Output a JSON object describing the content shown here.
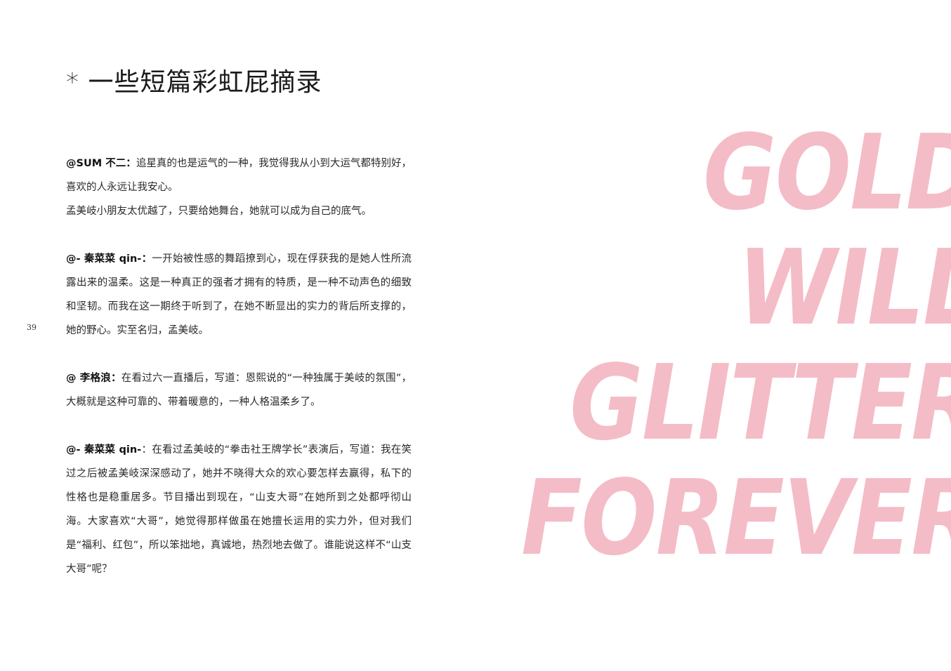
{
  "title": "* 一些短篇彩虹屁摘录",
  "page_number": "39",
  "quotes": [
    {
      "author": "@SUM 不二：",
      "paragraphs": [
        "追星真的也是运气的一种，我觉得我从小到大运气都特别好，喜欢的人永远让我安心。",
        "孟美岐小朋友太优越了，只要给她舞台，她就可以成为自己的底气。"
      ]
    },
    {
      "author": "@- 秦菜菜 qin-：",
      "paragraphs": [
        "一开始被性感的舞蹈撩到心，现在俘获我的是她人性所流露出来的温柔。这是一种真正的强者才拥有的特质，是一种不动声色的细致和坚韧。而我在这一期终于听到了，在她不断显出的实力的背后所支撑的，她的野心。实至名归，孟美岐。"
      ]
    },
    {
      "author": "@ 李格浪：",
      "paragraphs": [
        "在看过六一直播后，写道：恩熙说的“一种独属于美岐的氛围”，大概就是这种可靠的、带着暖意的，一种人格温柔乡了。"
      ]
    },
    {
      "author": "@- 秦菜菜 qin-",
      "paragraphs": [
        "：在看过孟美岐的“拳击社王牌学长”表演后，写道：我在笑过之后被孟美岐深深感动了，她并不晓得大众的欢心要怎样去赢得，私下的性格也是稳重居多。节目播出到现在，“山支大哥”在她所到之处都呼彻山海。大家喜欢“大哥”，她觉得那样做虽在她擅长运用的实力外，但对我们是“福利、红包”，所以笨拙地，真诚地，热烈地去做了。谁能说这样不“山支大哥”呢？"
      ]
    }
  ],
  "big_words": [
    "GOLD",
    "WILL",
    "GLITTER",
    "FOREVER"
  ],
  "colors": {
    "big_words": "#f4bcc7",
    "text": "#2a2a2a",
    "background": "#ffffff"
  }
}
